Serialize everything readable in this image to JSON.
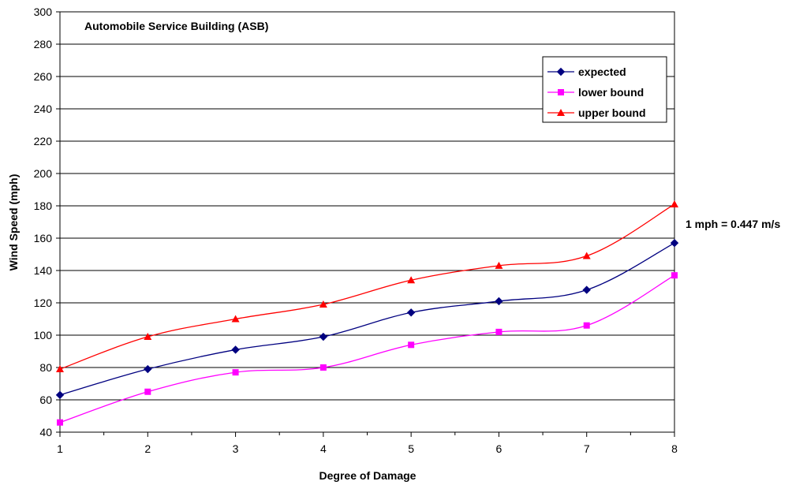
{
  "chart_data": {
    "type": "line",
    "title": "Automobile Service Building (ASB)",
    "xlabel": "Degree of Damage",
    "ylabel": "Wind Speed (mph)",
    "annotation": "1 mph = 0.447 m/s",
    "x": [
      1,
      2,
      3,
      4,
      5,
      6,
      7,
      8
    ],
    "xlim": [
      1,
      8
    ],
    "ylim": [
      40,
      300
    ],
    "yticks": [
      40,
      60,
      80,
      100,
      120,
      140,
      160,
      180,
      200,
      220,
      240,
      260,
      280,
      300
    ],
    "xticks": [
      1,
      2,
      3,
      4,
      5,
      6,
      7,
      8
    ],
    "grid": "horizontal",
    "legend_position": "top-right",
    "series": [
      {
        "name": "expected",
        "color": "#000080",
        "marker": "diamond",
        "values": [
          63,
          79,
          91,
          99,
          114,
          121,
          128,
          157
        ]
      },
      {
        "name": "lower bound",
        "color": "#ff00ff",
        "marker": "square",
        "values": [
          46,
          65,
          77,
          80,
          94,
          102,
          106,
          137
        ]
      },
      {
        "name": "upper bound",
        "color": "#ff0000",
        "marker": "triangle",
        "values": [
          79,
          99,
          110,
          119,
          134,
          143,
          149,
          181
        ]
      }
    ]
  }
}
